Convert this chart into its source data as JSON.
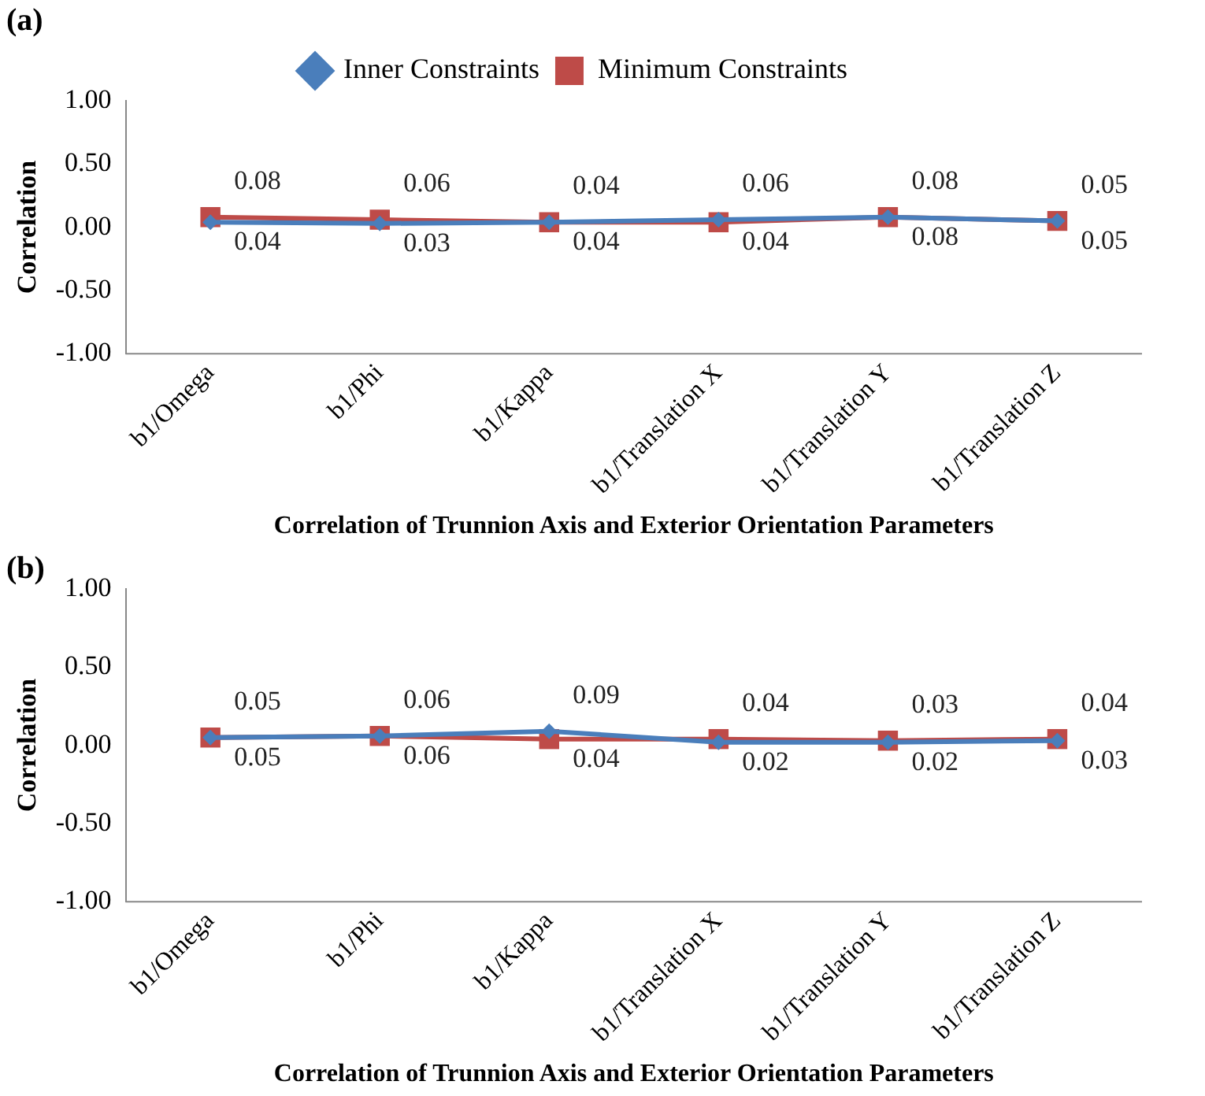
{
  "chart_data": [
    {
      "type": "line",
      "title": "(a)",
      "xlabel": "Correlation of Trunnion Axis and Exterior Orientation Parameters",
      "ylabel": "Correlation",
      "categories": [
        "b1/Omega",
        "b1/Phi",
        "b1/Kappa",
        "b1/Translation X",
        "b1/Translation Y",
        "b1/Translation Z"
      ],
      "series": [
        {
          "name": "Inner Constraints",
          "color": "#4a7ebb",
          "marker": "diamond",
          "values": [
            0.04,
            0.03,
            0.04,
            0.06,
            0.08,
            0.05
          ]
        },
        {
          "name": "Minimum Constraints",
          "color": "#be4b48",
          "marker": "square",
          "values": [
            0.08,
            0.06,
            0.04,
            0.04,
            0.08,
            0.05
          ]
        }
      ],
      "ylim": [
        -1,
        1
      ],
      "yticks": [
        {
          "value": -1,
          "label": "-1.00"
        },
        {
          "value": -0.5,
          "label": "-0.50"
        },
        {
          "value": 0,
          "label": "0.00"
        },
        {
          "value": 0.5,
          "label": "0.50"
        },
        {
          "value": 1,
          "label": "1.00"
        }
      ],
      "grid": false,
      "legend": "top",
      "data_labels": true
    },
    {
      "type": "line",
      "title": "(b)",
      "xlabel": "Correlation of Trunnion Axis and Exterior Orientation Parameters",
      "ylabel": "Correlation",
      "categories": [
        "b1/Omega",
        "b1/Phi",
        "b1/Kappa",
        "b1/Translation X",
        "b1/Translation Y",
        "b1/Translation Z"
      ],
      "series": [
        {
          "color": "#4a7ebb",
          "marker": "diamond",
          "values": [
            0.05,
            0.06,
            0.09,
            0.02,
            0.02,
            0.03
          ]
        },
        {
          "color": "#be4b48",
          "marker": "square",
          "values": [
            0.05,
            0.06,
            0.04,
            0.04,
            0.03,
            0.04
          ]
        }
      ],
      "ylim": [
        -1,
        1
      ],
      "yticks": [
        {
          "value": -1,
          "label": "-1.00"
        },
        {
          "value": -0.5,
          "label": "-0.50"
        },
        {
          "value": 0,
          "label": "0.00"
        },
        {
          "value": 0.5,
          "label": "0.50"
        },
        {
          "value": 1,
          "label": "1.00"
        }
      ],
      "grid": false,
      "legend": false,
      "data_labels": true
    }
  ]
}
